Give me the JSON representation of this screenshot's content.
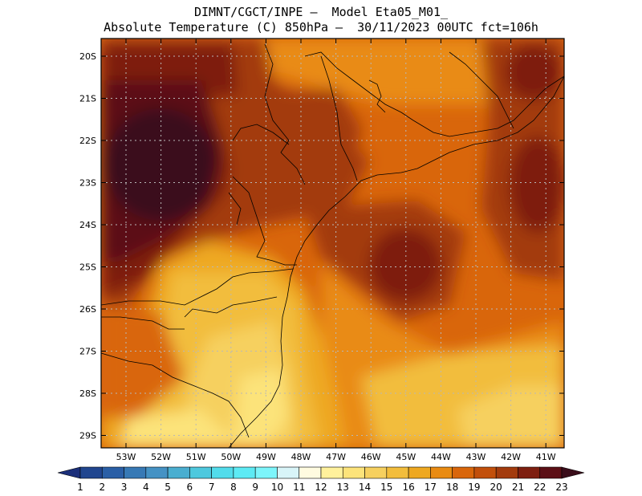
{
  "header": {
    "line1": "DIMNT/CGCT/INPE –  Model Eta05_M01_",
    "line2": "Absolute Temperature (C) 850hPa –  30/11/2023 00UTC fct=106h"
  },
  "map": {
    "lat_labels": [
      "20S",
      "21S",
      "22S",
      "23S",
      "24S",
      "25S",
      "26S",
      "27S",
      "28S",
      "29S"
    ],
    "lon_labels": [
      "53W",
      "52W",
      "51W",
      "50W",
      "49W",
      "48W",
      "47W",
      "46W",
      "45W",
      "44W",
      "43W",
      "42W",
      "41W"
    ]
  },
  "colorbar": {
    "labels": [
      "1",
      "2",
      "3",
      "4",
      "5",
      "6",
      "7",
      "8",
      "9",
      "10",
      "11",
      "12",
      "13",
      "14",
      "15",
      "16",
      "17",
      "18",
      "19",
      "20",
      "21",
      "22",
      "23"
    ],
    "colors": [
      "#1b2f7a",
      "#21468f",
      "#2a5fa6",
      "#3779b5",
      "#4592c4",
      "#4aaed0",
      "#4ec8de",
      "#52dceb",
      "#5deaf4",
      "#7df5fb",
      "#d8f4f8",
      "#fffbe0",
      "#fff19c",
      "#fce37a",
      "#f6d05f",
      "#f2bd3c",
      "#eea821",
      "#e98b12",
      "#d9660b",
      "#c24f0b",
      "#a33b0d",
      "#7e1f10",
      "#5c0f16",
      "#3a0d1a"
    ]
  }
}
